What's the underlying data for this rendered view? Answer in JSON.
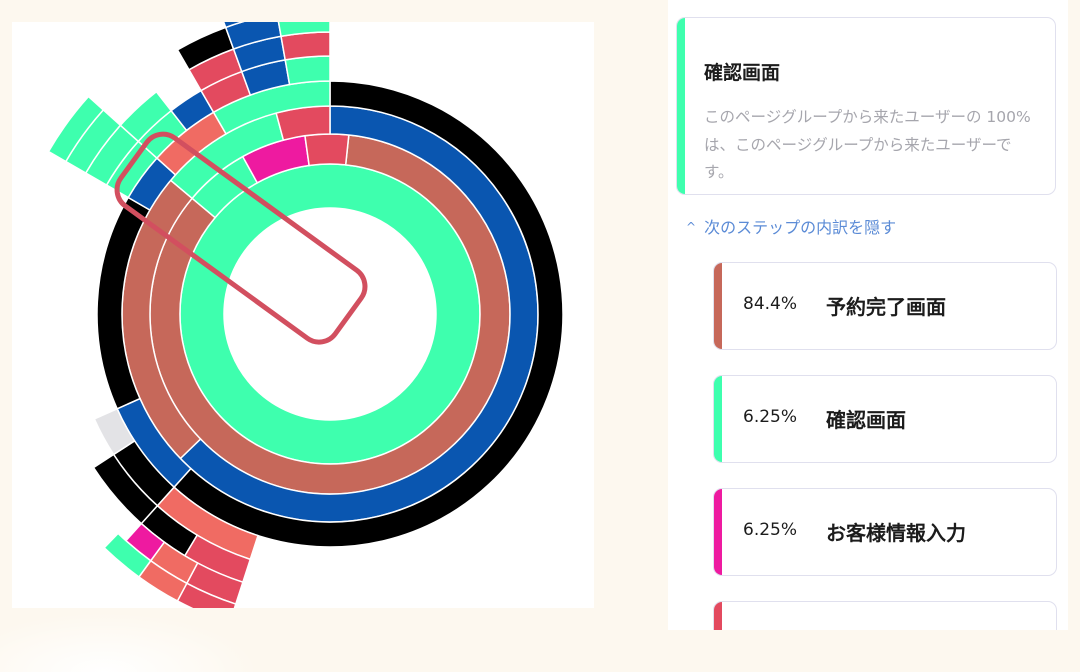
{
  "colors": {
    "mint": "#3effae",
    "brown": "#c6685a",
    "blue": "#0a56b0",
    "black": "#000000",
    "magenta": "#ee1aa0",
    "crimson": "#e34a5f",
    "salmon": "#f06b63",
    "lightgray": "#e3e3e6",
    "highlight": "#d24f5f"
  },
  "info_card": {
    "title": "確認画面",
    "description": "このページグループから来たユーザーの 100% は、このページグループから来たユーザーです。",
    "accent_icon": "mint-accent-bar"
  },
  "toggle": {
    "icon": "chevron-up-icon",
    "label": "次のステップの内訳を隠す"
  },
  "next_steps": [
    {
      "percent": "84.4%",
      "name": "予約完了画面",
      "color": "#c6685a"
    },
    {
      "percent": "6.25%",
      "name": "確認画面",
      "color": "#3effae"
    },
    {
      "percent": "6.25%",
      "name": "お客様情報入力",
      "color": "#ee1aa0"
    },
    {
      "percent": "",
      "name": "",
      "color": "#e34a5f"
    }
  ],
  "sunburst": {
    "rings": [
      {
        "level": 1,
        "arcs": [
          {
            "color": "#3effae",
            "fraction": 1.0
          }
        ]
      },
      {
        "level": 2,
        "arcs": [
          {
            "color": "#c6685a",
            "fraction": 0.844
          },
          {
            "color": "#3effae",
            "fraction": 0.0625
          },
          {
            "color": "#ee1aa0",
            "fraction": 0.0625
          },
          {
            "color": "#e34a5f",
            "fraction": 0.031
          }
        ]
      }
    ],
    "highlighted_segment": "確認画面"
  }
}
